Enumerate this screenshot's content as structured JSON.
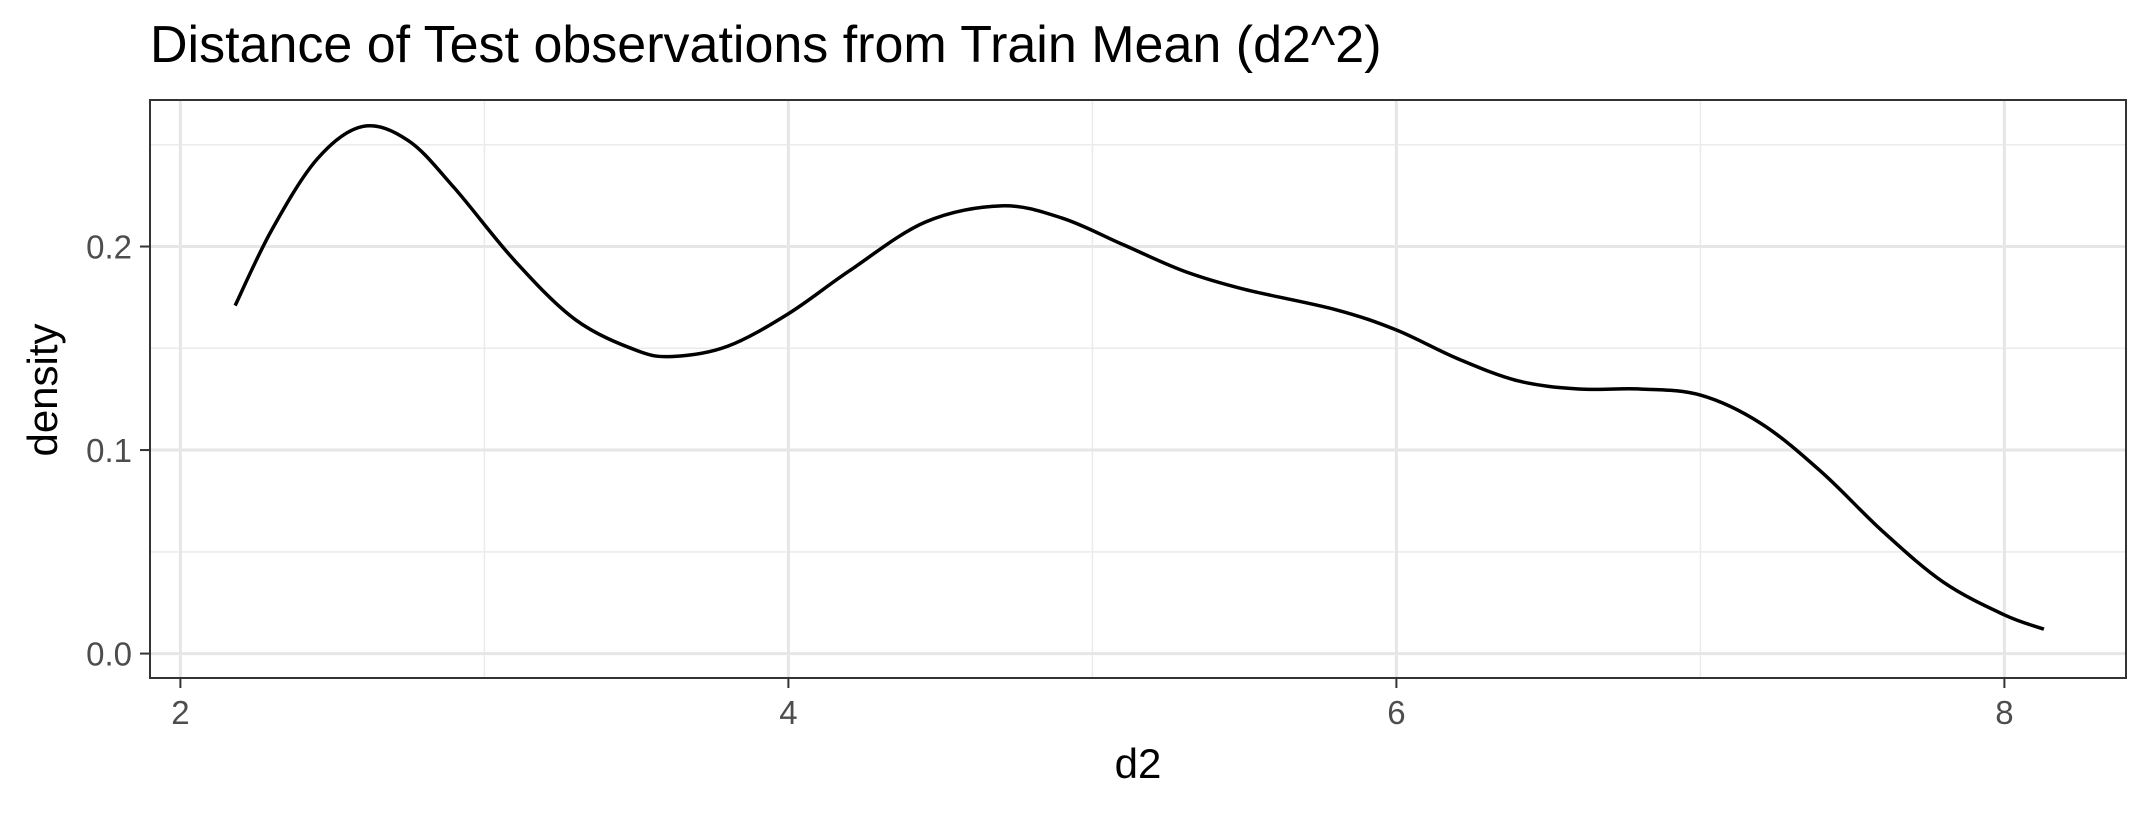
{
  "chart_data": {
    "type": "line",
    "title": "Distance of Test observations from Train Mean (d2^2)",
    "xlabel": "d2",
    "ylabel": "density",
    "xlim": [
      1.9,
      8.4
    ],
    "ylim": [
      -0.012,
      0.272
    ],
    "x_ticks": [
      2,
      4,
      6,
      8
    ],
    "x_minor_ticks": [
      3,
      5,
      7
    ],
    "y_ticks": [
      0.0,
      0.1,
      0.2
    ],
    "y_minor_ticks": [
      0.05,
      0.15,
      0.25
    ],
    "x_tick_labels": [
      "2",
      "4",
      "6",
      "8"
    ],
    "y_tick_labels": [
      "0.0",
      "0.1",
      "0.2"
    ],
    "grid": true,
    "series": [
      {
        "color": "#000000",
        "x": [
          2.18,
          2.3,
          2.45,
          2.6,
          2.75,
          2.9,
          3.1,
          3.3,
          3.5,
          3.62,
          3.8,
          4.0,
          4.2,
          4.45,
          4.7,
          4.9,
          5.1,
          5.3,
          5.5,
          5.8,
          6.0,
          6.2,
          6.4,
          6.6,
          6.8,
          7.0,
          7.2,
          7.4,
          7.6,
          7.8,
          8.0,
          8.13
        ],
        "y": [
          0.171,
          0.208,
          0.243,
          0.259,
          0.252,
          0.229,
          0.193,
          0.164,
          0.149,
          0.146,
          0.151,
          0.167,
          0.188,
          0.212,
          0.22,
          0.214,
          0.201,
          0.188,
          0.179,
          0.169,
          0.159,
          0.145,
          0.134,
          0.13,
          0.13,
          0.127,
          0.113,
          0.089,
          0.06,
          0.035,
          0.019,
          0.012
        ]
      }
    ]
  }
}
